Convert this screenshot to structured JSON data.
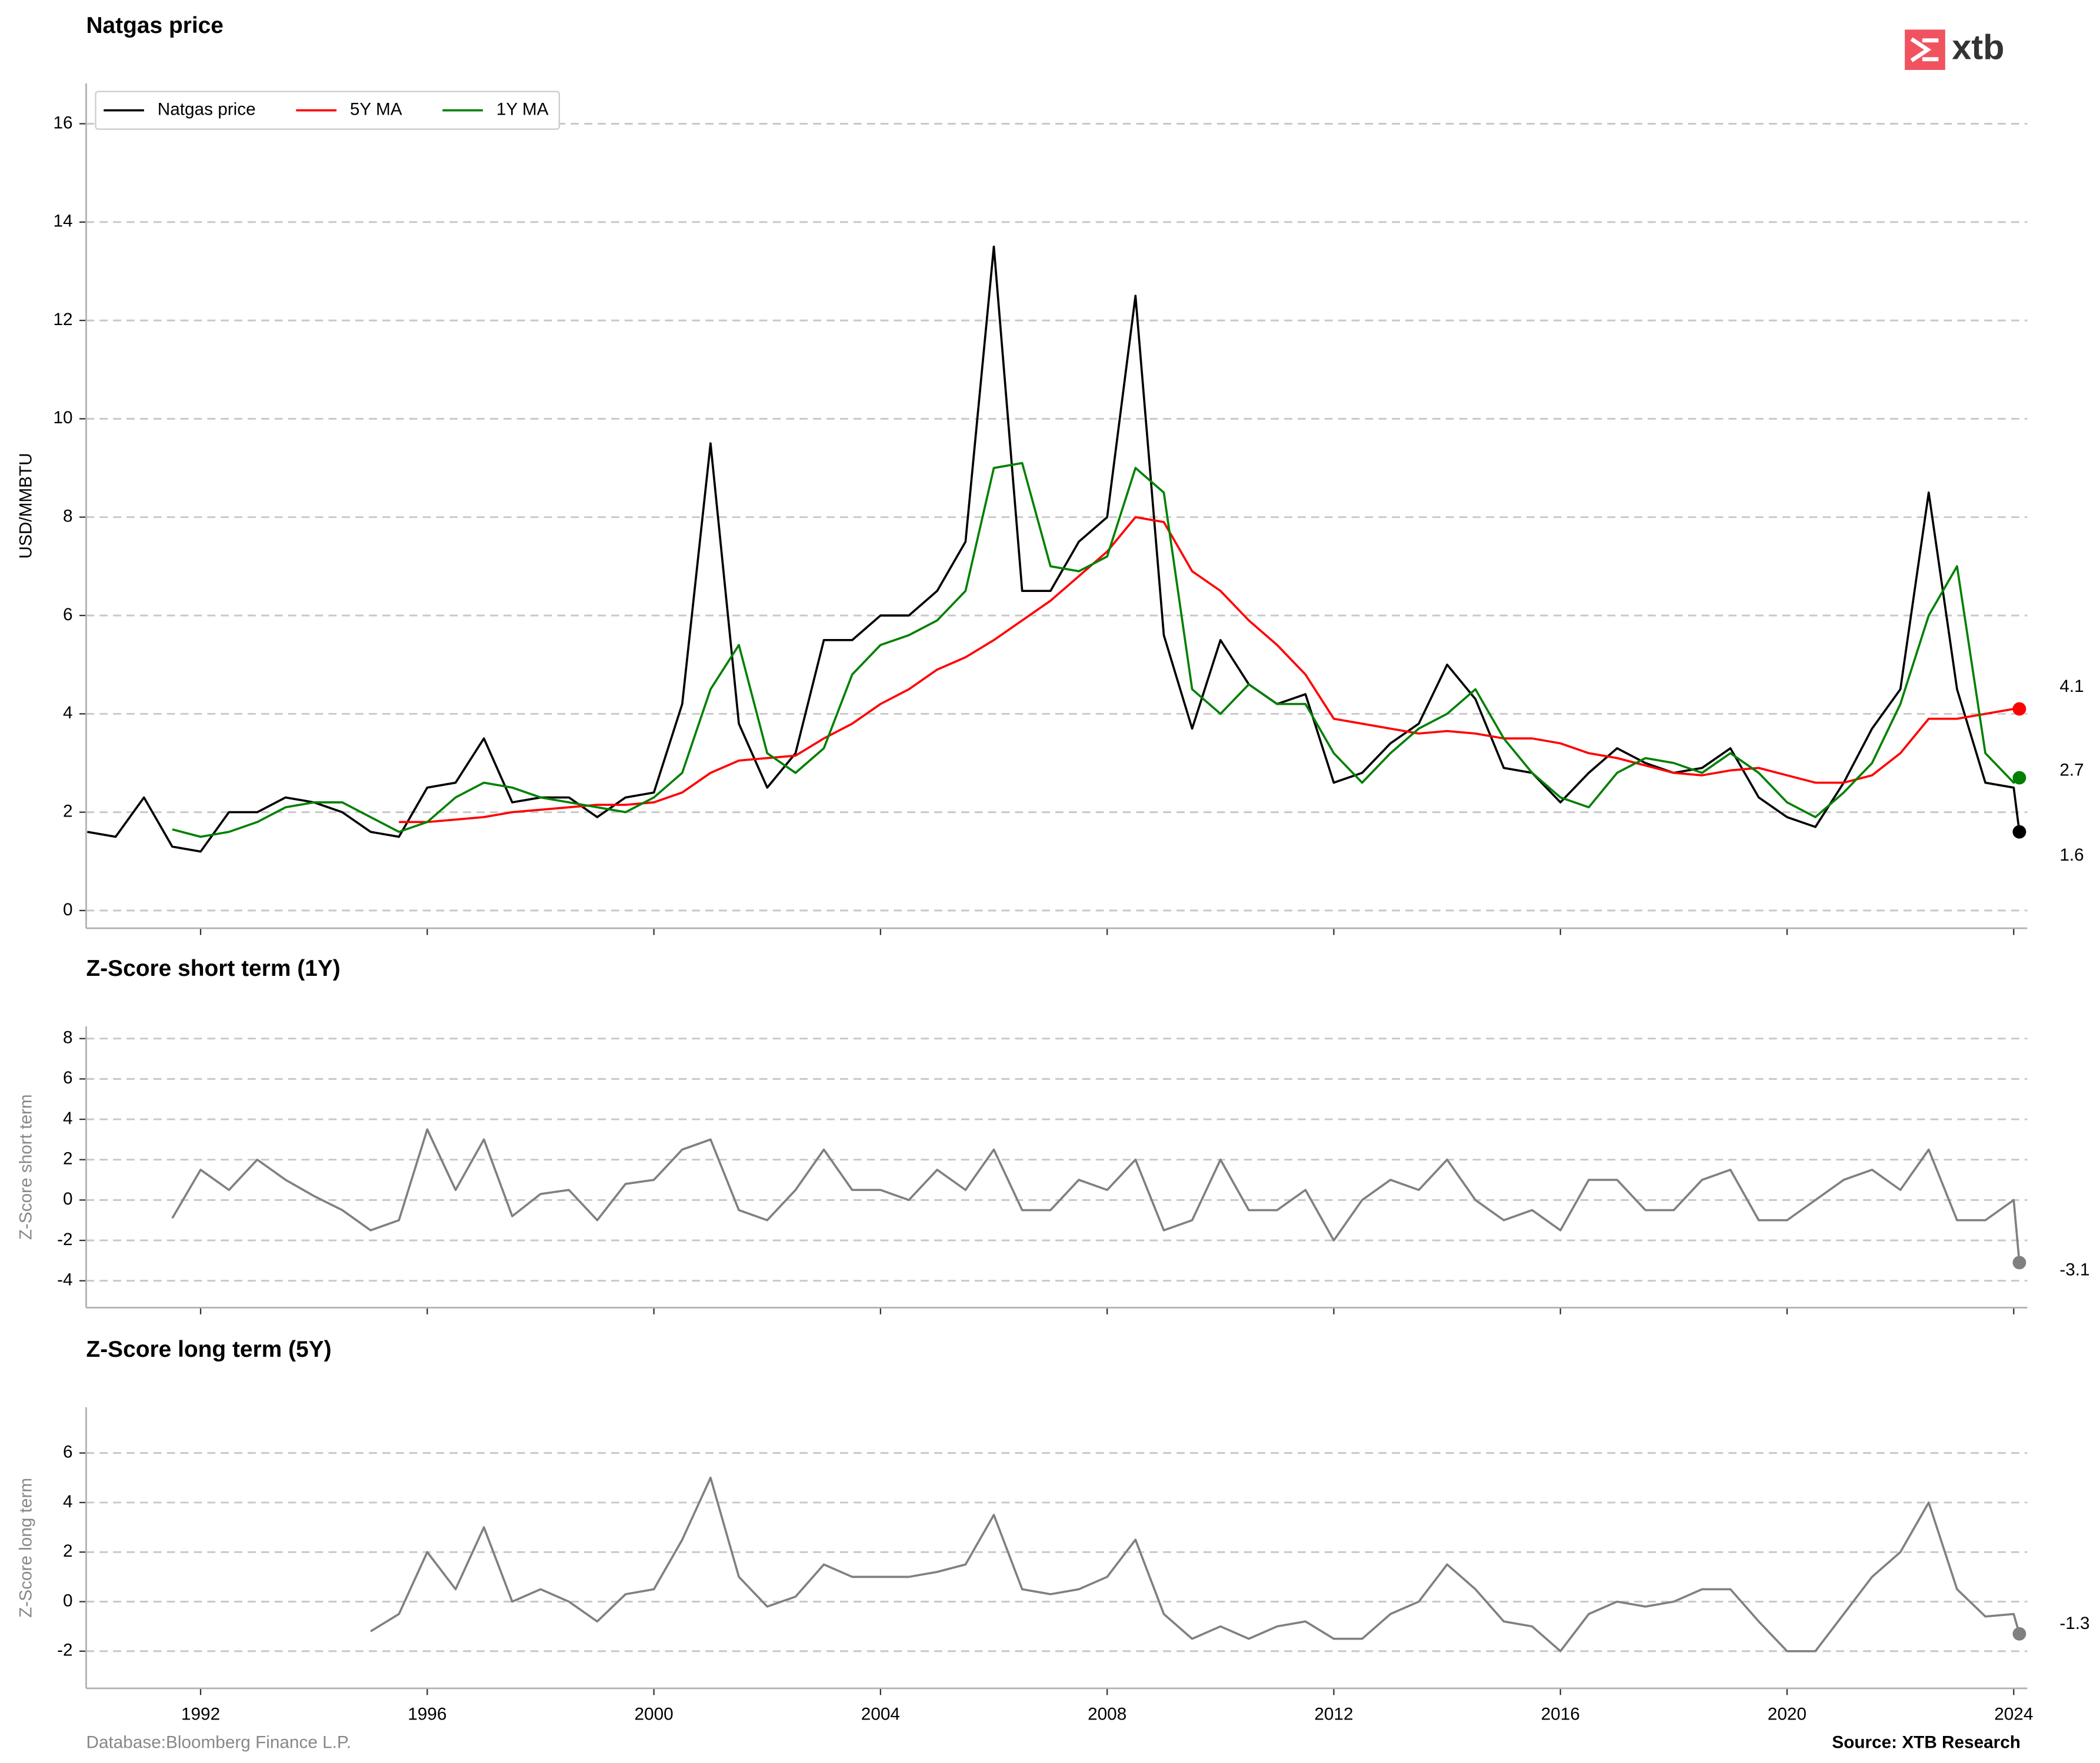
{
  "logo": "xtb",
  "footer": {
    "left": "Database:Bloomberg Finance L.P.",
    "right": "Source: XTB Research"
  },
  "chart_data": [
    {
      "type": "line",
      "title": "Natgas price",
      "ylabel": "USD/MMBTU",
      "legend": "upper left",
      "grid": true,
      "x": [
        1990.0,
        1990.5,
        1991.0,
        1991.5,
        1992.0,
        1992.5,
        1993.0,
        1993.5,
        1994.0,
        1994.5,
        1995.0,
        1995.5,
        1996.0,
        1996.5,
        1997.0,
        1997.5,
        1998.0,
        1998.5,
        1999.0,
        1999.5,
        2000.0,
        2000.5,
        2001.0,
        2001.5,
        2002.0,
        2002.5,
        2003.0,
        2003.5,
        2004.0,
        2004.5,
        2005.0,
        2005.5,
        2006.0,
        2006.5,
        2007.0,
        2007.5,
        2008.0,
        2008.5,
        2009.0,
        2009.5,
        2010.0,
        2010.5,
        2011.0,
        2011.5,
        2012.0,
        2012.5,
        2013.0,
        2013.5,
        2014.0,
        2014.5,
        2015.0,
        2015.5,
        2016.0,
        2016.5,
        2017.0,
        2017.5,
        2018.0,
        2018.5,
        2019.0,
        2019.5,
        2020.0,
        2020.5,
        2021.0,
        2021.5,
        2022.0,
        2022.5,
        2023.0,
        2023.5,
        2024.0,
        2024.1
      ],
      "xlim": [
        1989.98,
        2024.24
      ],
      "xticks": [
        1992,
        1996,
        2000,
        2004,
        2008,
        2012,
        2016,
        2020,
        2024
      ],
      "show_xtick_labels": false,
      "ylim": [
        -0.36,
        16.82
      ],
      "yticks": [
        0,
        2,
        4,
        6,
        8,
        10,
        12,
        14,
        16
      ],
      "series": [
        {
          "name": "Natgas price",
          "color": "#000000",
          "values": [
            1.6,
            1.5,
            2.3,
            1.3,
            1.2,
            2.0,
            2.0,
            2.3,
            2.2,
            2.0,
            1.6,
            1.5,
            2.5,
            2.6,
            3.5,
            2.2,
            2.3,
            2.3,
            1.9,
            2.3,
            2.4,
            4.2,
            9.5,
            3.8,
            2.5,
            3.2,
            5.5,
            5.5,
            6.0,
            6.0,
            6.5,
            7.5,
            13.5,
            6.5,
            6.5,
            7.5,
            8.0,
            12.5,
            5.6,
            3.7,
            5.5,
            4.6,
            4.2,
            4.4,
            2.6,
            2.8,
            3.4,
            3.8,
            5.0,
            4.3,
            2.9,
            2.8,
            2.2,
            2.8,
            3.3,
            3.0,
            2.8,
            2.9,
            3.3,
            2.3,
            1.9,
            1.7,
            2.6,
            3.7,
            4.5,
            8.5,
            4.5,
            2.6,
            2.5,
            1.6
          ]
        },
        {
          "name": "5Y MA",
          "color": "#ff0000",
          "values": [
            null,
            null,
            null,
            null,
            null,
            null,
            null,
            null,
            null,
            null,
            null,
            1.8,
            1.8,
            1.85,
            1.9,
            2.0,
            2.05,
            2.1,
            2.15,
            2.15,
            2.2,
            2.4,
            2.8,
            3.05,
            3.1,
            3.15,
            3.5,
            3.8,
            4.2,
            4.5,
            4.9,
            5.15,
            5.5,
            5.9,
            6.3,
            6.8,
            7.3,
            8.0,
            7.9,
            6.9,
            6.5,
            5.9,
            5.4,
            4.8,
            3.9,
            3.8,
            3.7,
            3.6,
            3.65,
            3.6,
            3.5,
            3.5,
            3.4,
            3.2,
            3.1,
            2.95,
            2.8,
            2.75,
            2.85,
            2.9,
            2.75,
            2.6,
            2.6,
            2.75,
            3.2,
            3.9,
            3.9,
            4.0,
            4.1,
            4.1
          ]
        },
        {
          "name": "1Y MA",
          "color": "#008000",
          "values": [
            null,
            null,
            null,
            1.65,
            1.5,
            1.6,
            1.8,
            2.1,
            2.2,
            2.2,
            1.9,
            1.6,
            1.8,
            2.3,
            2.6,
            2.5,
            2.3,
            2.2,
            2.1,
            2.0,
            2.3,
            2.8,
            4.5,
            5.4,
            3.2,
            2.8,
            3.3,
            4.8,
            5.4,
            5.6,
            5.9,
            6.5,
            9.0,
            9.1,
            7.0,
            6.9,
            7.2,
            9.0,
            8.5,
            4.5,
            4.0,
            4.6,
            4.2,
            4.2,
            3.2,
            2.6,
            3.2,
            3.7,
            4.0,
            4.5,
            3.5,
            2.8,
            2.3,
            2.1,
            2.8,
            3.1,
            3.0,
            2.8,
            3.2,
            2.8,
            2.2,
            1.9,
            2.4,
            3.0,
            4.2,
            6.0,
            7.0,
            3.2,
            2.6,
            2.7
          ]
        }
      ]
    },
    {
      "type": "line",
      "title": "Z-Score short term (1Y)",
      "ylabel": "Z-Score short term",
      "grid": true,
      "x": [
        1990.0,
        1990.5,
        1991.0,
        1991.5,
        1992.0,
        1992.5,
        1993.0,
        1993.5,
        1994.0,
        1994.5,
        1995.0,
        1995.5,
        1996.0,
        1996.5,
        1997.0,
        1997.5,
        1998.0,
        1998.5,
        1999.0,
        1999.5,
        2000.0,
        2000.5,
        2001.0,
        2001.5,
        2002.0,
        2002.5,
        2003.0,
        2003.5,
        2004.0,
        2004.5,
        2005.0,
        2005.5,
        2006.0,
        2006.5,
        2007.0,
        2007.5,
        2008.0,
        2008.5,
        2009.0,
        2009.5,
        2010.0,
        2010.5,
        2011.0,
        2011.5,
        2012.0,
        2012.5,
        2013.0,
        2013.5,
        2014.0,
        2014.5,
        2015.0,
        2015.5,
        2016.0,
        2016.5,
        2017.0,
        2017.5,
        2018.0,
        2018.5,
        2019.0,
        2019.5,
        2020.0,
        2020.5,
        2021.0,
        2021.5,
        2022.0,
        2022.5,
        2023.0,
        2023.5,
        2024.0,
        2024.1
      ],
      "xlim": [
        1989.98,
        2024.24
      ],
      "xticks": [
        1992,
        1996,
        2000,
        2004,
        2008,
        2012,
        2016,
        2020,
        2024
      ],
      "show_xtick_labels": false,
      "ylim": [
        -5.33,
        8.6
      ],
      "yticks": [
        -4,
        -2,
        0,
        2,
        4,
        6,
        8
      ],
      "series": [
        {
          "color": "#808080",
          "values": [
            null,
            null,
            null,
            -0.9,
            1.5,
            0.5,
            2.0,
            1.0,
            0.2,
            -0.5,
            -1.5,
            -1.0,
            3.5,
            0.5,
            3.0,
            -0.8,
            0.3,
            0.5,
            -1.0,
            0.8,
            1.0,
            2.5,
            3.0,
            -0.5,
            -1.0,
            0.5,
            2.5,
            0.5,
            0.5,
            0.0,
            1.5,
            0.5,
            2.5,
            -0.5,
            -0.5,
            1.0,
            0.5,
            2.0,
            -1.5,
            -1.0,
            2.0,
            -0.5,
            -0.5,
            0.5,
            -2.0,
            0.0,
            1.0,
            0.5,
            2.0,
            0.0,
            -1.0,
            -0.5,
            -1.5,
            1.0,
            1.0,
            -0.5,
            -0.5,
            1.0,
            1.5,
            -1.0,
            -1.0,
            0.0,
            1.0,
            1.5,
            0.5,
            2.5,
            -1.0,
            -1.0,
            0.0,
            -3.1
          ]
        }
      ]
    },
    {
      "type": "line",
      "title": "Z-Score long term (5Y)",
      "ylabel": "Z-Score long term",
      "grid": true,
      "x": [
        1990.0,
        1990.5,
        1991.0,
        1991.5,
        1992.0,
        1992.5,
        1993.0,
        1993.5,
        1994.0,
        1994.5,
        1995.0,
        1995.5,
        1996.0,
        1996.5,
        1997.0,
        1997.5,
        1998.0,
        1998.5,
        1999.0,
        1999.5,
        2000.0,
        2000.5,
        2001.0,
        2001.5,
        2002.0,
        2002.5,
        2003.0,
        2003.5,
        2004.0,
        2004.5,
        2005.0,
        2005.5,
        2006.0,
        2006.5,
        2007.0,
        2007.5,
        2008.0,
        2008.5,
        2009.0,
        2009.5,
        2010.0,
        2010.5,
        2011.0,
        2011.5,
        2012.0,
        2012.5,
        2013.0,
        2013.5,
        2014.0,
        2014.5,
        2015.0,
        2015.5,
        2016.0,
        2016.5,
        2017.0,
        2017.5,
        2018.0,
        2018.5,
        2019.0,
        2019.5,
        2020.0,
        2020.5,
        2021.0,
        2021.5,
        2022.0,
        2022.5,
        2023.0,
        2023.5,
        2024.0,
        2024.1
      ],
      "xlim": [
        1989.98,
        2024.24
      ],
      "xticks": [
        1992,
        1996,
        2000,
        2004,
        2008,
        2012,
        2016,
        2020,
        2024
      ],
      "show_xtick_labels": true,
      "ylim": [
        -3.5,
        7.85
      ],
      "yticks": [
        -2,
        0,
        2,
        4,
        6
      ],
      "series": [
        {
          "color": "#808080",
          "values": [
            null,
            null,
            null,
            null,
            null,
            null,
            null,
            null,
            null,
            null,
            -1.2,
            -0.5,
            2.0,
            0.5,
            3.0,
            0.0,
            0.5,
            0.0,
            -0.8,
            0.3,
            0.5,
            2.5,
            5.0,
            1.0,
            -0.2,
            0.2,
            1.5,
            1.0,
            1.0,
            1.0,
            1.2,
            1.5,
            3.5,
            0.5,
            0.3,
            0.5,
            1.0,
            2.5,
            -0.5,
            -1.5,
            -1.0,
            -1.5,
            -1.0,
            -0.8,
            -1.5,
            -1.5,
            -0.5,
            0.0,
            1.5,
            0.5,
            -0.8,
            -1.0,
            -2.0,
            -0.5,
            0.0,
            -0.2,
            0.0,
            0.5,
            0.5,
            -0.8,
            -2.0,
            -2.0,
            -0.5,
            1.0,
            2.0,
            4.0,
            0.5,
            -0.6,
            -0.5,
            -1.3
          ]
        }
      ]
    }
  ]
}
